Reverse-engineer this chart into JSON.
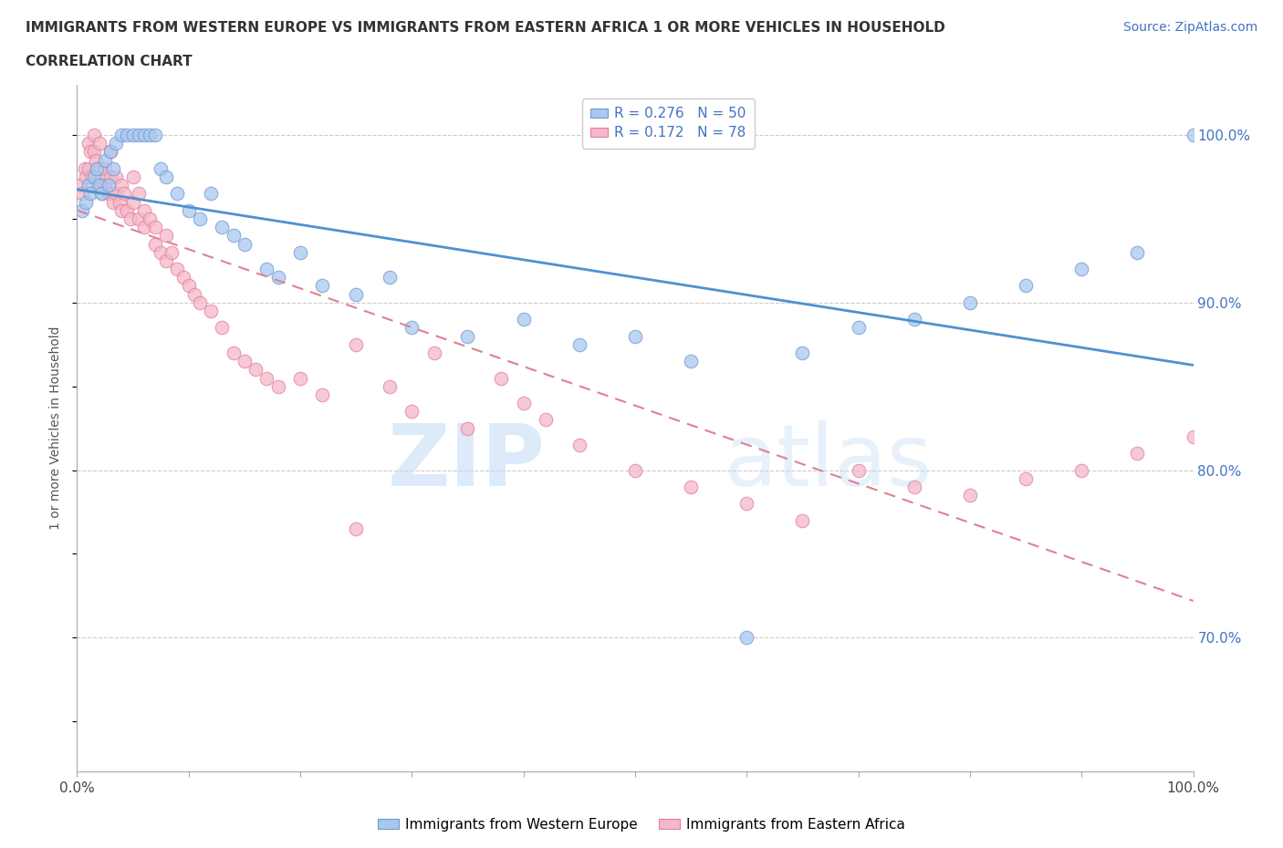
{
  "title_line1": "IMMIGRANTS FROM WESTERN EUROPE VS IMMIGRANTS FROM EASTERN AFRICA 1 OR MORE VEHICLES IN HOUSEHOLD",
  "title_line2": "CORRELATION CHART",
  "source": "Source: ZipAtlas.com",
  "ylabel": "1 or more Vehicles in Household",
  "xlim": [
    0.0,
    100.0
  ],
  "ylim": [
    62.0,
    103.0
  ],
  "yticks": [
    70.0,
    80.0,
    90.0,
    100.0
  ],
  "R_blue": 0.276,
  "N_blue": 50,
  "R_pink": 0.172,
  "N_pink": 78,
  "blue_color": "#A8C8F0",
  "pink_color": "#F5B8C8",
  "blue_edge": "#7099D0",
  "pink_edge": "#E080A0",
  "trend_blue": "#5090D0",
  "trend_pink": "#E08090",
  "watermark_zip": "ZIP",
  "watermark_atlas": "atlas",
  "legend_label_blue": "Immigrants from Western Europe",
  "legend_label_pink": "Immigrants from Eastern Africa",
  "blue_x": [
    0.5,
    0.8,
    1.0,
    1.2,
    1.5,
    1.8,
    2.0,
    2.2,
    2.5,
    2.8,
    3.0,
    3.2,
    3.5,
    4.0,
    4.5,
    5.0,
    5.5,
    6.0,
    6.5,
    7.0,
    7.5,
    8.0,
    9.0,
    10.0,
    11.0,
    12.0,
    13.0,
    14.0,
    15.0,
    17.0,
    18.0,
    20.0,
    22.0,
    25.0,
    28.0,
    30.0,
    35.0,
    40.0,
    45.0,
    50.0,
    55.0,
    60.0,
    65.0,
    70.0,
    75.0,
    80.0,
    85.0,
    90.0,
    95.0,
    100.0
  ],
  "blue_y": [
    95.5,
    96.0,
    97.0,
    96.5,
    97.5,
    98.0,
    97.0,
    96.5,
    98.5,
    97.0,
    99.0,
    98.0,
    99.5,
    100.0,
    100.0,
    100.0,
    100.0,
    100.0,
    100.0,
    100.0,
    98.0,
    97.5,
    96.5,
    95.5,
    95.0,
    96.5,
    94.5,
    94.0,
    93.5,
    92.0,
    91.5,
    93.0,
    91.0,
    90.5,
    91.5,
    88.5,
    88.0,
    89.0,
    87.5,
    88.0,
    86.5,
    70.0,
    87.0,
    88.5,
    89.0,
    90.0,
    91.0,
    92.0,
    93.0,
    100.0
  ],
  "pink_x": [
    0.3,
    0.5,
    0.7,
    0.8,
    1.0,
    1.0,
    1.2,
    1.3,
    1.5,
    1.5,
    1.7,
    1.8,
    2.0,
    2.0,
    2.2,
    2.3,
    2.5,
    2.5,
    2.8,
    3.0,
    3.0,
    3.2,
    3.5,
    3.5,
    3.8,
    4.0,
    4.0,
    4.2,
    4.5,
    4.8,
    5.0,
    5.0,
    5.5,
    5.5,
    6.0,
    6.0,
    6.5,
    7.0,
    7.0,
    7.5,
    8.0,
    8.0,
    8.5,
    9.0,
    9.5,
    10.0,
    10.5,
    11.0,
    12.0,
    13.0,
    14.0,
    15.0,
    16.0,
    17.0,
    18.0,
    20.0,
    22.0,
    25.0,
    28.0,
    30.0,
    32.0,
    35.0,
    38.0,
    40.0,
    42.0,
    45.0,
    50.0,
    55.0,
    60.0,
    65.0,
    70.0,
    75.0,
    80.0,
    85.0,
    90.0,
    95.0,
    100.0,
    25.0
  ],
  "pink_y": [
    97.0,
    96.5,
    98.0,
    97.5,
    99.5,
    98.0,
    99.0,
    97.5,
    100.0,
    99.0,
    98.5,
    97.0,
    99.5,
    98.0,
    97.5,
    96.5,
    98.0,
    97.0,
    96.5,
    99.0,
    97.5,
    96.0,
    97.5,
    96.5,
    96.0,
    97.0,
    95.5,
    96.5,
    95.5,
    95.0,
    97.5,
    96.0,
    96.5,
    95.0,
    95.5,
    94.5,
    95.0,
    94.5,
    93.5,
    93.0,
    94.0,
    92.5,
    93.0,
    92.0,
    91.5,
    91.0,
    90.5,
    90.0,
    89.5,
    88.5,
    87.0,
    86.5,
    86.0,
    85.5,
    85.0,
    85.5,
    84.5,
    87.5,
    85.0,
    83.5,
    87.0,
    82.5,
    85.5,
    84.0,
    83.0,
    81.5,
    80.0,
    79.0,
    78.0,
    77.0,
    80.0,
    79.0,
    78.5,
    79.5,
    80.0,
    81.0,
    82.0,
    76.5
  ]
}
